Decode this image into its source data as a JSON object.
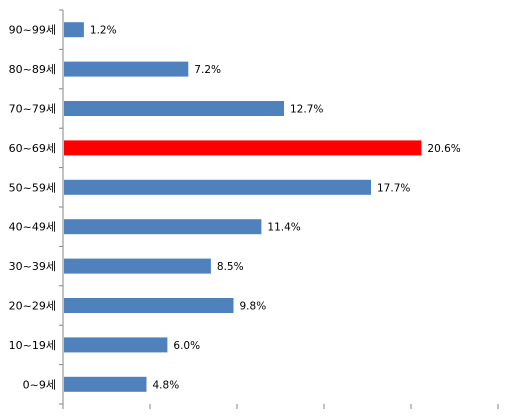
{
  "chart_data": {
    "type": "bar",
    "orientation": "horizontal",
    "categories": [
      "90~99세",
      "80~89세",
      "70~79세",
      "60~69세",
      "50~59세",
      "40~49세",
      "30~39세",
      "20~29세",
      "10~19세",
      "0~9세"
    ],
    "values": [
      1.2,
      7.2,
      12.7,
      20.6,
      17.7,
      11.4,
      8.5,
      9.8,
      6.0,
      4.8
    ],
    "value_labels": [
      "1.2%",
      "7.2%",
      "12.7%",
      "20.6%",
      "17.7%",
      "11.4%",
      "8.5%",
      "9.8%",
      "6.0%",
      "4.8%"
    ],
    "highlight_index": 3,
    "xlim": [
      0,
      25
    ],
    "grid": false,
    "legend": "none",
    "colors": {
      "bar": "#4f81bd",
      "highlight": "#ff0000",
      "axis": "#868686"
    }
  }
}
